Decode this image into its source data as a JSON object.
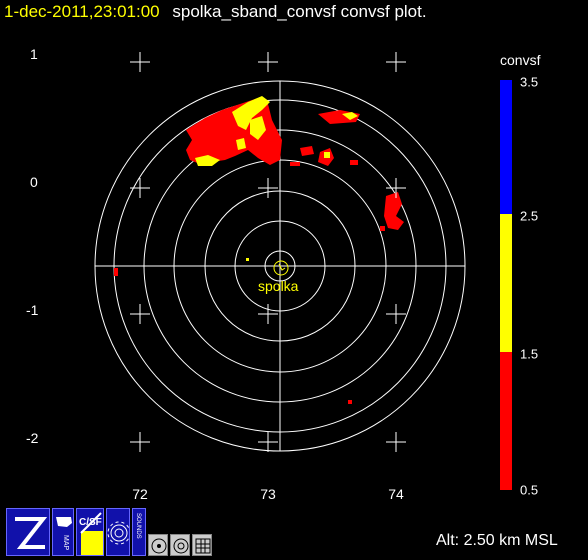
{
  "title": {
    "timestamp": "1-dec-2011,23:01:00",
    "name": "spolka_sband_convsf convsf  plot."
  },
  "axes": {
    "y_labels": [
      "1",
      "0",
      "-1",
      "-2"
    ],
    "x_labels": [
      "72",
      "73",
      "74"
    ]
  },
  "radar": {
    "site_label": "spolka",
    "site_color": "#ffff00"
  },
  "colorbar": {
    "title": "convsf",
    "ticks": [
      "3.5",
      "2.5",
      "1.5",
      "0.5"
    ],
    "colors": {
      "high": "#0000ff",
      "mid": "#ffff00",
      "low": "#ff0000"
    }
  },
  "altitude": "Alt: 2.50 km MSL",
  "toolbar": {
    "buttons": [
      {
        "name": "zoom-button",
        "icon": "z-logo-icon"
      },
      {
        "name": "map-button",
        "label": "MAP",
        "icon": "us-map-icon"
      },
      {
        "name": "csf-button",
        "label": "C/SF",
        "icon": "csf-icon"
      },
      {
        "name": "gear-button",
        "icon": "gear-icon"
      },
      {
        "name": "sounds-button",
        "label": "SOUNDS",
        "icon": "sounds-icon"
      },
      {
        "name": "radar-center-button",
        "icon": "circle-dot-icon"
      },
      {
        "name": "radar-target-button",
        "icon": "target-icon"
      },
      {
        "name": "grid-button",
        "icon": "grid-icon"
      }
    ]
  }
}
